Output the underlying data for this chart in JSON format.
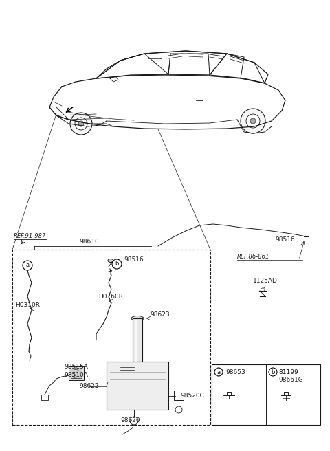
{
  "bg_color": "#ffffff",
  "line_color": "#1a1a1a",
  "fig_width": 4.8,
  "fig_height": 6.56,
  "dpi": 100,
  "labels": {
    "REF_91_987": "REF.91-987",
    "REF_86_861": "REF.86-861",
    "98610": "98610",
    "98516_top": "98516",
    "98516_inner": "98516",
    "H0310R": "H0310R",
    "H0760R": "H0760R",
    "98623": "98623",
    "98515A": "98515A",
    "98510A": "98510A",
    "98622": "98622",
    "98620": "98620",
    "98520C": "98520C",
    "1125AD": "1125AD",
    "98653": "98653",
    "81199": "81199",
    "98661G": "98661G"
  },
  "font_size_label": 6.5,
  "font_size_ref": 6.0
}
